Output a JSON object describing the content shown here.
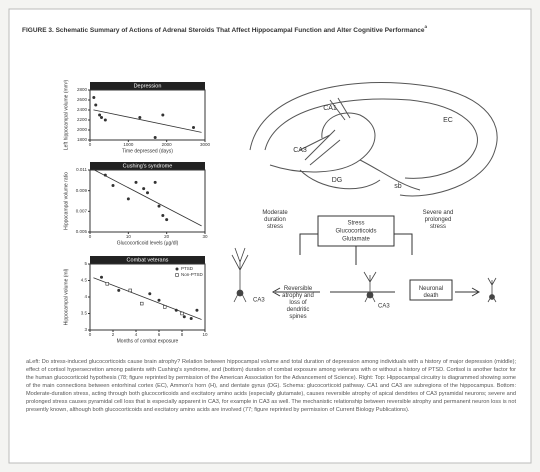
{
  "header": {
    "title": "FIGURE 3. Schematic Summary of Actions of Adrenal Steroids That Affect Hippocampal Function and Alter Cognitive Performance",
    "title_note": "a"
  },
  "plots": [
    {
      "title": "Depression",
      "y_label": "Left hippocampal volume (mm³)",
      "x_label": "Time depressed (days)",
      "xlim": [
        0,
        3000
      ],
      "xticks": [
        0,
        1000,
        2000,
        3000
      ],
      "ylim": [
        1800,
        2800
      ],
      "yticks": [
        1800,
        2000,
        2200,
        2400,
        2600,
        2800
      ],
      "series": [
        {
          "x": [
            100,
            150,
            250,
            300,
            400,
            1300,
            1700,
            1900,
            2700
          ],
          "y": [
            2650,
            2500,
            2300,
            2250,
            2200,
            2250,
            1850,
            2300,
            2050
          ]
        }
      ]
    },
    {
      "title": "Cushing's syndrome",
      "y_label": "Hippocampal volume ratio",
      "x_label": "Glucocorticoid levels (µg/dl)",
      "xlim": [
        0,
        30
      ],
      "xticks": [
        0,
        10,
        20,
        30
      ],
      "ylim": [
        0.005,
        0.011
      ],
      "yticks": [
        0.005,
        0.007,
        0.009,
        0.011
      ],
      "series": [
        {
          "x": [
            4,
            6,
            12,
            14,
            15,
            17,
            18,
            10,
            19,
            20
          ],
          "y": [
            0.0105,
            0.0095,
            0.0098,
            0.0092,
            0.0088,
            0.0098,
            0.0075,
            0.0082,
            0.0066,
            0.0062
          ]
        }
      ]
    },
    {
      "title": "Combat veterans",
      "y_label": "Hippocampal volume (ml)",
      "x_label": "Months of combat exposure",
      "xlim": [
        0,
        10
      ],
      "xticks": [
        0,
        2,
        4,
        6,
        8,
        10
      ],
      "ylim": [
        3,
        5
      ],
      "yticks": [
        3,
        3.5,
        4,
        4.5,
        5
      ],
      "legend_position": "upper right",
      "series": [
        {
          "name": "PTSD",
          "x": [
            1,
            2.5,
            5.2,
            6,
            7.5,
            8.2,
            8.8,
            9.3
          ],
          "y": [
            4.6,
            4.2,
            4.1,
            3.9,
            3.6,
            3.4,
            3.35,
            3.6
          ]
        },
        {
          "name": "Non-PTSD",
          "x": [
            1.5,
            3.5,
            4.5,
            6.5,
            8
          ],
          "y": [
            4.4,
            4.2,
            3.8,
            3.7,
            3.5
          ]
        }
      ]
    }
  ],
  "diagram": {
    "regions": [
      "EC",
      "CA1",
      "CA3",
      "DG",
      "sb"
    ],
    "center_box": [
      "Stress",
      "Glucocorticoids",
      "Glutamate"
    ],
    "moderate": "Moderate duration stress",
    "severe": "Severe and prolonged stress",
    "reversible": "Reversible atrophy and loss of dendritic spines",
    "death": "Neuronal death",
    "neuron_labels": [
      "CA3",
      "CA3"
    ]
  },
  "footnote": "aLeft: Do stress-induced glucocorticoids cause brain atrophy? Relation between hippocampal volume and total duration of depression among individuals with a history of major depression (middle); effect of cortisol hypersecretion among patients with Cushing's syndrome, and (bottom) duration of combat exposure among veterans with or without a history of PTSD. Cortisol is another factor for the human glucocorticoid hypothesis (78; figure reprinted by permission of the American Association for the Advancement of Science). Right: Top: Hippocampal circuitry is diagrammed showing some of the main connections between entorhinal cortex (EC), Ammon's horn (H), and dentate gyrus (DG). Schema: glucocorticoid pathway. CA1 and CA3 are subregions of the hippocampus. Bottom: Moderate-duration stress, acting through both glucocorticoids and excitatory amino acids (especially glutamate), causes reversible atrophy of apical dendrites of CA3 pyramidal neurons; severe and prolonged stress causes pyramidal cell loss that is especially apparent in CA3, for example in CA3 as well. The mechanistic relationship between reversible atrophy and permanent neuron loss is not presently known, although both glucocorticoids and excitatory amino acids are involved (77; figure reprinted by permission of Current Biology Publications)."
}
